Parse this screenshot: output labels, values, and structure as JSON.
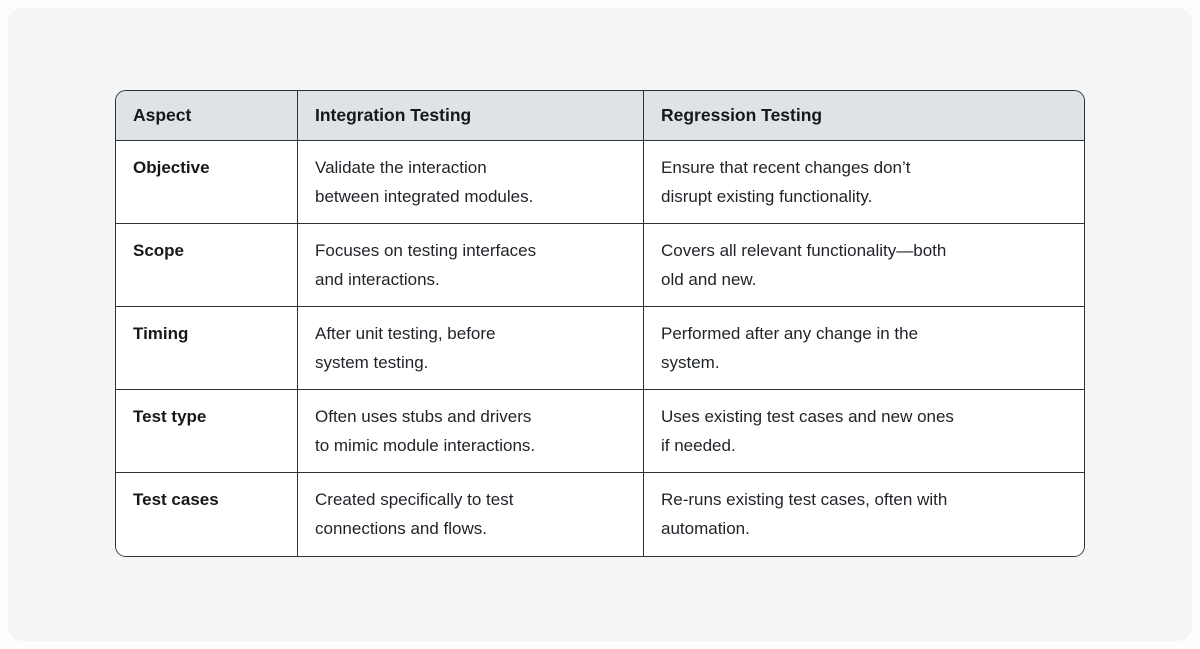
{
  "table": {
    "columns": [
      "Aspect",
      "Integration Testing",
      "Regression Testing"
    ],
    "rows": [
      {
        "aspect": "Objective",
        "integration": "Validate the interaction\nbetween integrated modules.",
        "regression": "Ensure that recent changes don’t\ndisrupt existing functionality."
      },
      {
        "aspect": "Scope",
        "integration": "Focuses on testing interfaces\nand interactions.",
        "regression": "Covers all relevant functionality—both\nold and new."
      },
      {
        "aspect": "Timing",
        "integration": "After unit testing, before\nsystem testing.",
        "regression": "Performed after any change in the\nsystem."
      },
      {
        "aspect": "Test type",
        "integration": "Often uses stubs and drivers\nto mimic module interactions.",
        "regression": "Uses existing test cases and new ones\nif needed."
      },
      {
        "aspect": "Test cases",
        "integration": "Created specifically to test\nconnections and flows.",
        "regression": "Re-runs existing test cases, often with\nautomation."
      }
    ],
    "colors": {
      "page_bg": "#f4f5f7",
      "header_bg": "#dfe3e6",
      "border": "#2c3136",
      "cell_bg": "#ffffff",
      "text": "#1f2328"
    }
  }
}
